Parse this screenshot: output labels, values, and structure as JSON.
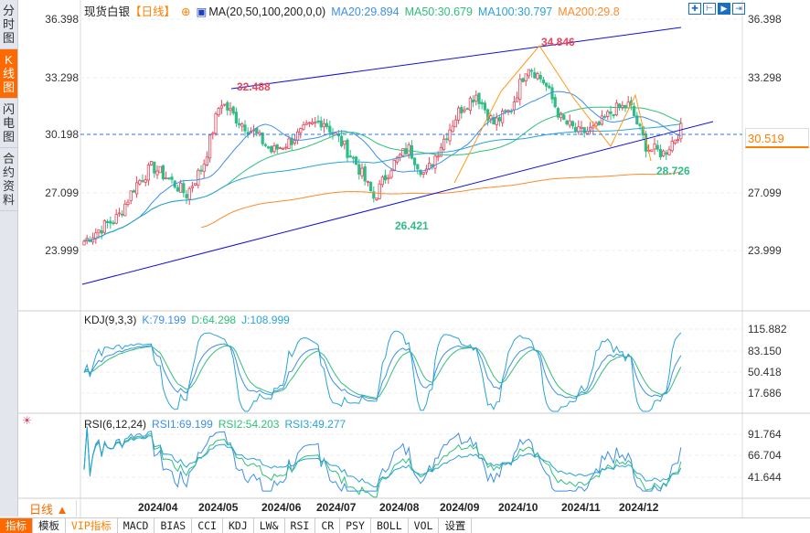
{
  "sidebar": {
    "tabs": [
      "分\n时\n图",
      "K\n线\n图",
      "闪\n电\n图",
      "合\n约\n资\n料"
    ],
    "active": 1
  },
  "header": {
    "symbol": "现货白银",
    "period": "【日线】",
    "ma_label": "MA(20,50,100,200,0,0)",
    "ma20": "MA20:29.894",
    "ma50": "MA50:30.679",
    "ma100": "MA100:30.797",
    "ma200": "MA200:29.8"
  },
  "toolbar_icons": [
    "crosshair-icon",
    "range-icon",
    "play-icon",
    "exit-icon"
  ],
  "price_axis": [
    "36.398",
    "33.298",
    "30.198",
    "27.099",
    "23.999"
  ],
  "current_price": "30.519",
  "annotations": {
    "high1": "32.488",
    "high2": "34.846",
    "low1": "26.421",
    "low2": "28.726"
  },
  "kdj": {
    "label": "KDJ(9,3,3)",
    "k": "K:79.199",
    "d": "D:64.298",
    "j": "J:108.999",
    "axis": [
      "115.882",
      "83.150",
      "50.418",
      "17.686"
    ]
  },
  "rsi": {
    "label": "RSI(6,12,24)",
    "r1": "RSI1:69.199",
    "r2": "RSI2:54.203",
    "r3": "RSI3:49.277",
    "axis": [
      "91.764",
      "66.704",
      "41.644"
    ]
  },
  "period_selector": "日线 ▲",
  "dates": [
    "2024/04",
    "2024/05",
    "2024/06",
    "2024/07",
    "2024/08",
    "2024/09",
    "2024/10",
    "2024/11",
    "2024/12"
  ],
  "bottom_tabs": [
    "指标",
    "模板",
    "VIP指标",
    "MACD",
    "BIAS",
    "CCI",
    "KDJ",
    "LW&",
    "RSI",
    "CR",
    "PSY",
    "BOLL",
    "VOL",
    "设置"
  ],
  "colors": {
    "up": "#e8455a",
    "down": "#2ebd85",
    "ma20": "#3d8fe8",
    "ma50": "#2fc07a",
    "ma100": "#29a3d8",
    "ma200": "#ff8a2a",
    "trend": "#1010e0",
    "accent": "#ff6a00"
  },
  "chart_data": {
    "type": "candlestick",
    "title": "现货白银 日线",
    "ylim": [
      22.5,
      37
    ],
    "close_keypoints": [
      24.5,
      25.2,
      25.8,
      27.5,
      28.5,
      27.8,
      27.0,
      28.6,
      32.0,
      31.0,
      30.3,
      29.3,
      29.8,
      30.5,
      31.0,
      29.9,
      28.6,
      26.8,
      28.5,
      29.5,
      28.0,
      29.8,
      31.5,
      32.4,
      30.8,
      31.5,
      34.0,
      33.0,
      31.0,
      30.3,
      30.5,
      31.5,
      31.8,
      29.5,
      29.2,
      30.5
    ]
  }
}
